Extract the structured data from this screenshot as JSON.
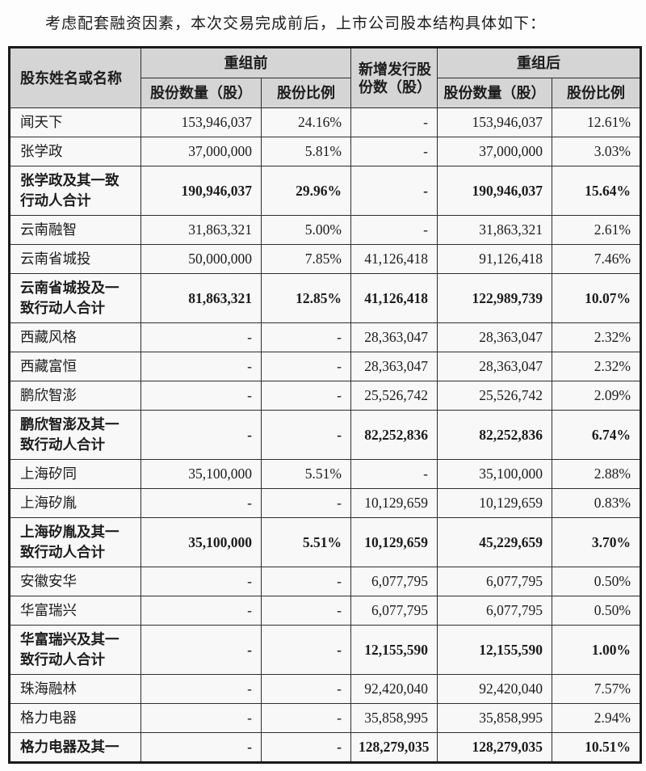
{
  "intro": "考虑配套融资因素，本次交易完成前后，上市公司股本结构具体如下：",
  "table": {
    "header": {
      "shareholder": "股东姓名或名称",
      "before": "重组前",
      "new_issue": "新增发行股\n份数（股）",
      "after": "重组后",
      "shares": "股份数量（股）",
      "ratio": "股份比例"
    },
    "rows": [
      {
        "name": "闻天下",
        "bold": false,
        "before_shares": "153,946,037",
        "before_ratio": "24.16%",
        "new_shares": "-",
        "after_shares": "153,946,037",
        "after_ratio": "12.61%"
      },
      {
        "name": "张学政",
        "bold": false,
        "before_shares": "37,000,000",
        "before_ratio": "5.81%",
        "new_shares": "-",
        "after_shares": "37,000,000",
        "after_ratio": "3.03%"
      },
      {
        "name": "张学政及其一致\n行动人合计",
        "bold": true,
        "before_shares": "190,946,037",
        "before_ratio": "29.96%",
        "new_shares": "-",
        "after_shares": "190,946,037",
        "after_ratio": "15.64%"
      },
      {
        "name": "云南融智",
        "bold": false,
        "before_shares": "31,863,321",
        "before_ratio": "5.00%",
        "new_shares": "-",
        "after_shares": "31,863,321",
        "after_ratio": "2.61%"
      },
      {
        "name": "云南省城投",
        "bold": false,
        "before_shares": "50,000,000",
        "before_ratio": "7.85%",
        "new_shares": "41,126,418",
        "after_shares": "91,126,418",
        "after_ratio": "7.46%"
      },
      {
        "name": "云南省城投及一\n致行动人合计",
        "bold": true,
        "before_shares": "81,863,321",
        "before_ratio": "12.85%",
        "new_shares": "41,126,418",
        "after_shares": "122,989,739",
        "after_ratio": "10.07%"
      },
      {
        "name": "西藏风格",
        "bold": false,
        "before_shares": "-",
        "before_ratio": "-",
        "new_shares": "28,363,047",
        "after_shares": "28,363,047",
        "after_ratio": "2.32%"
      },
      {
        "name": "西藏富恒",
        "bold": false,
        "before_shares": "-",
        "before_ratio": "-",
        "new_shares": "28,363,047",
        "after_shares": "28,363,047",
        "after_ratio": "2.32%"
      },
      {
        "name": "鹏欣智澎",
        "bold": false,
        "before_shares": "-",
        "before_ratio": "-",
        "new_shares": "25,526,742",
        "after_shares": "25,526,742",
        "after_ratio": "2.09%"
      },
      {
        "name": "鹏欣智澎及其一\n致行动人合计",
        "bold": true,
        "before_shares": "-",
        "before_ratio": "-",
        "new_shares": "82,252,836",
        "after_shares": "82,252,836",
        "after_ratio": "6.74%"
      },
      {
        "name": "上海矽同",
        "bold": false,
        "before_shares": "35,100,000",
        "before_ratio": "5.51%",
        "new_shares": "-",
        "after_shares": "35,100,000",
        "after_ratio": "2.88%"
      },
      {
        "name": "上海矽胤",
        "bold": false,
        "before_shares": "-",
        "before_ratio": "-",
        "new_shares": "10,129,659",
        "after_shares": "10,129,659",
        "after_ratio": "0.83%"
      },
      {
        "name": "上海矽胤及其一\n致行动人合计",
        "bold": true,
        "before_shares": "35,100,000",
        "before_ratio": "5.51%",
        "new_shares": "10,129,659",
        "after_shares": "45,229,659",
        "after_ratio": "3.70%"
      },
      {
        "name": "安徽安华",
        "bold": false,
        "before_shares": "-",
        "before_ratio": "-",
        "new_shares": "6,077,795",
        "after_shares": "6,077,795",
        "after_ratio": "0.50%"
      },
      {
        "name": "华富瑞兴",
        "bold": false,
        "before_shares": "-",
        "before_ratio": "-",
        "new_shares": "6,077,795",
        "after_shares": "6,077,795",
        "after_ratio": "0.50%"
      },
      {
        "name": "华富瑞兴及其一\n致行动人合计",
        "bold": true,
        "before_shares": "-",
        "before_ratio": "-",
        "new_shares": "12,155,590",
        "after_shares": "12,155,590",
        "after_ratio": "1.00%"
      },
      {
        "name": "珠海融林",
        "bold": false,
        "before_shares": "-",
        "before_ratio": "-",
        "new_shares": "92,420,040",
        "after_shares": "92,420,040",
        "after_ratio": "7.57%"
      },
      {
        "name": "格力电器",
        "bold": false,
        "before_shares": "-",
        "before_ratio": "-",
        "new_shares": "35,858,995",
        "after_shares": "35,858,995",
        "after_ratio": "2.94%"
      },
      {
        "name": "格力电器及其一",
        "bold": true,
        "before_shares": "-",
        "before_ratio": "-",
        "new_shares": "128,279,035",
        "after_shares": "128,279,035",
        "after_ratio": "10.51%"
      }
    ]
  }
}
